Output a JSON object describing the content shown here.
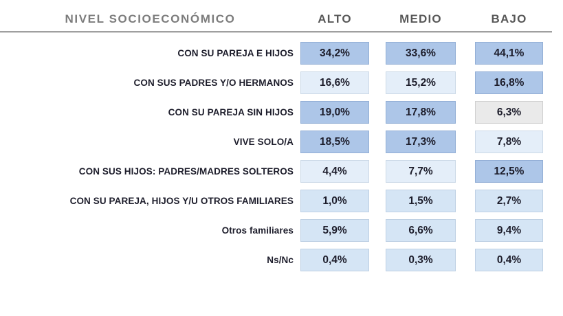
{
  "header": {
    "title": "NIVEL SOCIOECONÓMICO",
    "columns": [
      {
        "label": "ALTO"
      },
      {
        "label": "MEDIO"
      },
      {
        "label": "BAJO"
      }
    ]
  },
  "rows": [
    {
      "label": "CON SU PAREJA E HIJOS",
      "cells": [
        {
          "text": "34,2%",
          "shade": "med"
        },
        {
          "text": "33,6%",
          "shade": "med"
        },
        {
          "text": "44,1%",
          "shade": "med"
        }
      ]
    },
    {
      "label": "CON SUS PADRES Y/O HERMANOS",
      "cells": [
        {
          "text": "16,6%",
          "shade": "xlight"
        },
        {
          "text": "15,2%",
          "shade": "xlight"
        },
        {
          "text": "16,8%",
          "shade": "med"
        }
      ]
    },
    {
      "label": "CON SU PAREJA SIN HIJOS",
      "cells": [
        {
          "text": "19,0%",
          "shade": "med"
        },
        {
          "text": "17,8%",
          "shade": "med"
        },
        {
          "text": "6,3%",
          "shade": "gray"
        }
      ]
    },
    {
      "label": "VIVE SOLO/A",
      "cells": [
        {
          "text": "18,5%",
          "shade": "med"
        },
        {
          "text": "17,3%",
          "shade": "med"
        },
        {
          "text": "7,8%",
          "shade": "xlight"
        }
      ]
    },
    {
      "label": "CON SUS HIJOS: PADRES/MADRES SOLTEROS",
      "cells": [
        {
          "text": "4,4%",
          "shade": "xlight"
        },
        {
          "text": "7,7%",
          "shade": "xlight"
        },
        {
          "text": "12,5%",
          "shade": "med"
        }
      ]
    },
    {
      "label": "CON SU PAREJA, HIJOS Y/U OTROS FAMILIARES",
      "cells": [
        {
          "text": "1,0%",
          "shade": "light"
        },
        {
          "text": "1,5%",
          "shade": "light"
        },
        {
          "text": "2,7%",
          "shade": "light"
        }
      ]
    },
    {
      "label": "Otros familiares",
      "cells": [
        {
          "text": "5,9%",
          "shade": "light"
        },
        {
          "text": "6,6%",
          "shade": "light"
        },
        {
          "text": "9,4%",
          "shade": "light"
        }
      ]
    },
    {
      "label": "Ns/Nc",
      "cells": [
        {
          "text": "0,4%",
          "shade": "light"
        },
        {
          "text": "0,3%",
          "shade": "light"
        },
        {
          "text": "0,4%",
          "shade": "light"
        }
      ]
    }
  ],
  "colors": {
    "cell_medium_blue": "#adc6e8",
    "cell_light_blue": "#d5e5f5",
    "cell_very_light_blue": "#e4eef9",
    "cell_gray": "#eaeaea",
    "title_gray": "#7c7c7c",
    "column_header_gray": "#575757",
    "text_dark": "#1d1d2b",
    "rule_gray": "#9f9f9f"
  },
  "chart_data": {
    "type": "heatmap",
    "title": "NIVEL SOCIOECONÓMICO",
    "categories": [
      "CON SU PAREJA E HIJOS",
      "CON SUS PADRES Y/O HERMANOS",
      "CON SU PAREJA SIN HIJOS",
      "VIVE SOLO/A",
      "CON SUS HIJOS: PADRES/MADRES SOLTEROS",
      "CON SU PAREJA, HIJOS Y/U OTROS FAMILIARES",
      "Otros familiares",
      "Ns/Nc"
    ],
    "series": [
      {
        "name": "ALTO",
        "values": [
          34.2,
          16.6,
          19.0,
          18.5,
          4.4,
          1.0,
          5.9,
          0.4
        ]
      },
      {
        "name": "MEDIO",
        "values": [
          33.6,
          15.2,
          17.8,
          17.3,
          7.7,
          1.5,
          6.6,
          0.3
        ]
      },
      {
        "name": "BAJO",
        "values": [
          44.1,
          16.8,
          6.3,
          7.8,
          12.5,
          2.7,
          9.4,
          0.4
        ]
      }
    ],
    "unit": "%",
    "decimal_separator": ",",
    "legend_position": "none",
    "grid": false
  }
}
